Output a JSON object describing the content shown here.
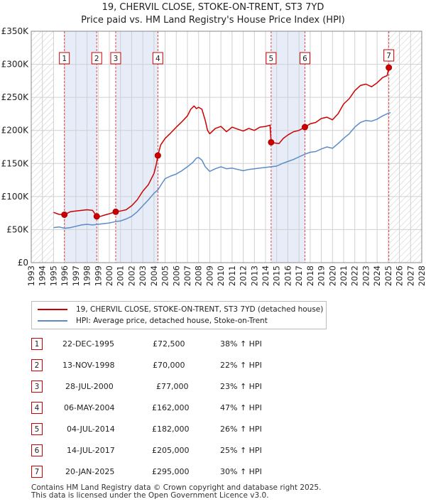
{
  "title_line1": "19, CHERVIL CLOSE, STOKE-ON-TRENT, ST3 7YD",
  "title_line2": "Price paid vs. HM Land Registry's House Price Index (HPI)",
  "colors": {
    "red": "#cc0000",
    "blue": "#5b8cc8",
    "shade": "#e6ecf8",
    "grid": "#d0d0d0"
  },
  "legend": {
    "red_label": "19, CHERVIL CLOSE, STOKE-ON-TRENT, ST3 7YD (detached house)",
    "blue_label": "HPI: Average price, detached house, Stoke-on-Trent"
  },
  "sales": [
    {
      "num": "1",
      "date": "22-DEC-1995",
      "price": "£72,500",
      "hpi": "38% ↑ HPI"
    },
    {
      "num": "2",
      "date": "13-NOV-1998",
      "price": "£70,000",
      "hpi": "22% ↑ HPI"
    },
    {
      "num": "3",
      "date": "28-JUL-2000",
      "price": "£77,000",
      "hpi": "23% ↑ HPI"
    },
    {
      "num": "4",
      "date": "06-MAY-2004",
      "price": "£162,000",
      "hpi": "47% ↑ HPI"
    },
    {
      "num": "5",
      "date": "04-JUL-2014",
      "price": "£182,000",
      "hpi": "26% ↑ HPI"
    },
    {
      "num": "6",
      "date": "14-JUL-2017",
      "price": "£205,000",
      "hpi": "25% ↑ HPI"
    },
    {
      "num": "7",
      "date": "20-JAN-2025",
      "price": "£295,000",
      "hpi": "30% ↑ HPI"
    }
  ],
  "footer_line1": "Contains HM Land Registry data © Crown copyright and database right 2025.",
  "footer_line2": "This data is licensed under the Open Government Licence v3.0.",
  "chart_data": {
    "type": "line",
    "title": "19, CHERVIL CLOSE, STOKE-ON-TRENT, ST3 7YD",
    "subtitle": "Price paid vs. HM Land Registry's House Price Index (HPI)",
    "xlim": [
      1993,
      2028
    ],
    "ylim": [
      0,
      350000
    ],
    "x_ticks": [
      1993,
      1994,
      1995,
      1996,
      1997,
      1998,
      1999,
      2000,
      2001,
      2002,
      2003,
      2004,
      2005,
      2006,
      2007,
      2008,
      2009,
      2010,
      2011,
      2012,
      2013,
      2014,
      2015,
      2016,
      2017,
      2018,
      2019,
      2020,
      2021,
      2022,
      2023,
      2024,
      2025,
      2026,
      2027,
      2028
    ],
    "y_ticks": [
      {
        "v": 0,
        "label": "£0"
      },
      {
        "v": 50000,
        "label": "£50K"
      },
      {
        "v": 100000,
        "label": "£100K"
      },
      {
        "v": 150000,
        "label": "£150K"
      },
      {
        "v": 200000,
        "label": "£200K"
      },
      {
        "v": 250000,
        "label": "£250K"
      },
      {
        "v": 300000,
        "label": "£300K"
      },
      {
        "v": 350000,
        "label": "£350K"
      }
    ],
    "hatch_ranges": [
      [
        1993,
        1995.0
      ],
      [
        2025.05,
        2028
      ]
    ],
    "shaded_ranges": [
      [
        1995.97,
        1998.87
      ],
      [
        2000.57,
        2004.35
      ],
      [
        2014.5,
        2017.53
      ]
    ],
    "series": [
      {
        "name": "19, CHERVIL CLOSE, STOKE-ON-TRENT, ST3 7YD (detached house)",
        "points": [
          [
            1995.0,
            76000
          ],
          [
            1995.5,
            73000
          ],
          [
            1995.97,
            72500
          ],
          [
            1996.5,
            77000
          ],
          [
            1997.0,
            78000
          ],
          [
            1997.5,
            79000
          ],
          [
            1998.0,
            80000
          ],
          [
            1998.5,
            79000
          ],
          [
            1998.87,
            70000
          ],
          [
            1999.2,
            70000
          ],
          [
            1999.6,
            72000
          ],
          [
            2000.0,
            74000
          ],
          [
            2000.57,
            77000
          ],
          [
            2001.0,
            78000
          ],
          [
            2001.5,
            80000
          ],
          [
            2002.0,
            86000
          ],
          [
            2002.5,
            95000
          ],
          [
            2003.0,
            108000
          ],
          [
            2003.5,
            118000
          ],
          [
            2004.0,
            135000
          ],
          [
            2004.2,
            148000
          ],
          [
            2004.35,
            162000
          ],
          [
            2004.6,
            178000
          ],
          [
            2005.0,
            188000
          ],
          [
            2005.5,
            196000
          ],
          [
            2006.0,
            205000
          ],
          [
            2006.5,
            213000
          ],
          [
            2007.0,
            222000
          ],
          [
            2007.3,
            232000
          ],
          [
            2007.6,
            237000
          ],
          [
            2007.8,
            233000
          ],
          [
            2008.0,
            235000
          ],
          [
            2008.3,
            232000
          ],
          [
            2008.6,
            215000
          ],
          [
            2008.8,
            200000
          ],
          [
            2009.0,
            195000
          ],
          [
            2009.5,
            203000
          ],
          [
            2010.0,
            206000
          ],
          [
            2010.5,
            198000
          ],
          [
            2011.0,
            205000
          ],
          [
            2011.5,
            202000
          ],
          [
            2012.0,
            199000
          ],
          [
            2012.5,
            203000
          ],
          [
            2013.0,
            200000
          ],
          [
            2013.5,
            205000
          ],
          [
            2014.0,
            206000
          ],
          [
            2014.4,
            208000
          ],
          [
            2014.5,
            182000
          ],
          [
            2014.8,
            181000
          ],
          [
            2015.2,
            180000
          ],
          [
            2015.6,
            188000
          ],
          [
            2016.0,
            193000
          ],
          [
            2016.5,
            198000
          ],
          [
            2017.0,
            200000
          ],
          [
            2017.53,
            205000
          ],
          [
            2018.0,
            210000
          ],
          [
            2018.5,
            212000
          ],
          [
            2019.0,
            218000
          ],
          [
            2019.5,
            220000
          ],
          [
            2020.0,
            216000
          ],
          [
            2020.5,
            225000
          ],
          [
            2021.0,
            240000
          ],
          [
            2021.5,
            248000
          ],
          [
            2022.0,
            260000
          ],
          [
            2022.5,
            268000
          ],
          [
            2023.0,
            270000
          ],
          [
            2023.5,
            266000
          ],
          [
            2024.0,
            272000
          ],
          [
            2024.5,
            280000
          ],
          [
            2024.9,
            283000
          ],
          [
            2025.05,
            295000
          ],
          [
            2025.2,
            298000
          ]
        ]
      },
      {
        "name": "HPI: Average price, detached house, Stoke-on-Trent",
        "points": [
          [
            1995.0,
            53000
          ],
          [
            1995.5,
            54000
          ],
          [
            1996.0,
            52000
          ],
          [
            1996.5,
            53000
          ],
          [
            1997.0,
            55000
          ],
          [
            1997.5,
            57000
          ],
          [
            1998.0,
            58000
          ],
          [
            1998.5,
            57000
          ],
          [
            1999.0,
            58000
          ],
          [
            1999.5,
            59000
          ],
          [
            2000.0,
            60000
          ],
          [
            2000.5,
            62000
          ],
          [
            2001.0,
            63000
          ],
          [
            2001.5,
            66000
          ],
          [
            2002.0,
            70000
          ],
          [
            2002.5,
            77000
          ],
          [
            2003.0,
            86000
          ],
          [
            2003.5,
            95000
          ],
          [
            2004.0,
            105000
          ],
          [
            2004.35,
            110000
          ],
          [
            2004.8,
            122000
          ],
          [
            2005.0,
            127000
          ],
          [
            2005.5,
            131000
          ],
          [
            2006.0,
            134000
          ],
          [
            2006.5,
            139000
          ],
          [
            2007.0,
            145000
          ],
          [
            2007.5,
            152000
          ],
          [
            2007.8,
            158000
          ],
          [
            2008.0,
            159000
          ],
          [
            2008.3,
            155000
          ],
          [
            2008.6,
            145000
          ],
          [
            2009.0,
            138000
          ],
          [
            2009.5,
            142000
          ],
          [
            2010.0,
            145000
          ],
          [
            2010.5,
            142000
          ],
          [
            2011.0,
            143000
          ],
          [
            2011.5,
            141000
          ],
          [
            2012.0,
            139000
          ],
          [
            2012.5,
            141000
          ],
          [
            2013.0,
            142000
          ],
          [
            2013.5,
            143000
          ],
          [
            2014.0,
            144000
          ],
          [
            2014.5,
            145000
          ],
          [
            2015.0,
            146000
          ],
          [
            2015.5,
            150000
          ],
          [
            2016.0,
            153000
          ],
          [
            2016.5,
            156000
          ],
          [
            2017.0,
            160000
          ],
          [
            2017.53,
            164000
          ],
          [
            2018.0,
            167000
          ],
          [
            2018.5,
            168000
          ],
          [
            2019.0,
            172000
          ],
          [
            2019.5,
            175000
          ],
          [
            2020.0,
            173000
          ],
          [
            2020.5,
            180000
          ],
          [
            2021.0,
            188000
          ],
          [
            2021.5,
            195000
          ],
          [
            2022.0,
            205000
          ],
          [
            2022.5,
            212000
          ],
          [
            2023.0,
            215000
          ],
          [
            2023.5,
            214000
          ],
          [
            2024.0,
            217000
          ],
          [
            2024.5,
            222000
          ],
          [
            2025.0,
            226000
          ],
          [
            2025.2,
            227000
          ]
        ]
      }
    ],
    "sale_points": [
      {
        "label": "1",
        "x": 1995.97,
        "y": 72500
      },
      {
        "label": "2",
        "x": 1998.87,
        "y": 70000
      },
      {
        "label": "3",
        "x": 2000.57,
        "y": 77000
      },
      {
        "label": "4",
        "x": 2004.35,
        "y": 162000
      },
      {
        "label": "5",
        "x": 2014.5,
        "y": 182000
      },
      {
        "label": "6",
        "x": 2017.53,
        "y": 205000
      },
      {
        "label": "7",
        "x": 2025.05,
        "y": 295000
      }
    ]
  }
}
